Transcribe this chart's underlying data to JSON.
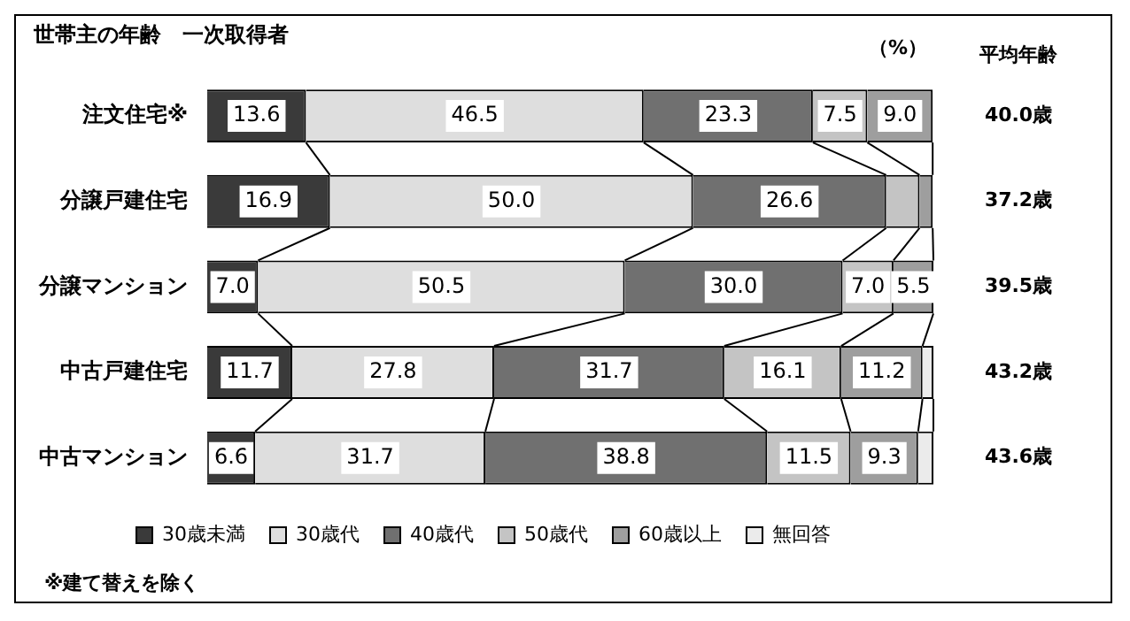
{
  "chart_data": {
    "type": "bar",
    "orientation": "horizontal",
    "stacked": true,
    "title": "世帯主の年齢　一次取得者",
    "categories": [
      "注文住宅※",
      "分譲戸建住宅",
      "分譲マンション",
      "中古戸建住宅",
      "中古マンション"
    ],
    "series": [
      {
        "name": "30歳未満",
        "color": "#3a3a3a",
        "values": [
          13.6,
          16.9,
          7.0,
          11.7,
          6.6
        ],
        "value_labels": [
          "13.6",
          "16.9",
          "7.0",
          "11.7",
          "6.6"
        ]
      },
      {
        "name": "30歳代",
        "color": "#dedede",
        "values": [
          46.5,
          50.0,
          50.5,
          27.8,
          31.7
        ],
        "value_labels": [
          "46.5",
          "50.0",
          "50.5",
          "27.8",
          "31.7"
        ]
      },
      {
        "name": "40歳代",
        "color": "#707070",
        "values": [
          23.3,
          26.6,
          30.0,
          31.7,
          38.8
        ],
        "value_labels": [
          "23.3",
          "26.6",
          "30.0",
          "31.7",
          "38.8"
        ]
      },
      {
        "name": "50歳代",
        "color": "#c4c4c4",
        "values": [
          7.5,
          4.6,
          7.0,
          16.1,
          11.5
        ],
        "value_labels": [
          "7.5",
          null,
          "7.0",
          "16.1",
          "11.5"
        ]
      },
      {
        "name": "60歳以上",
        "color": "#9e9e9e",
        "values": [
          9.0,
          1.8,
          5.5,
          11.2,
          9.3
        ],
        "value_labels": [
          "9.0",
          null,
          "5.5",
          "11.2",
          "9.3"
        ]
      },
      {
        "name": "無回答",
        "color": "#ebebeb",
        "values": [
          null,
          null,
          null,
          1.5,
          2.1
        ],
        "value_labels": [
          null,
          null,
          null,
          null,
          null
        ]
      }
    ],
    "legend": "bottom",
    "annotations": [
      "（%）",
      "平均年齢",
      "40.0歳",
      "37.2歳",
      "39.5歳",
      "43.2歳",
      "43.6歳",
      "※建て替えを除く"
    ]
  }
}
